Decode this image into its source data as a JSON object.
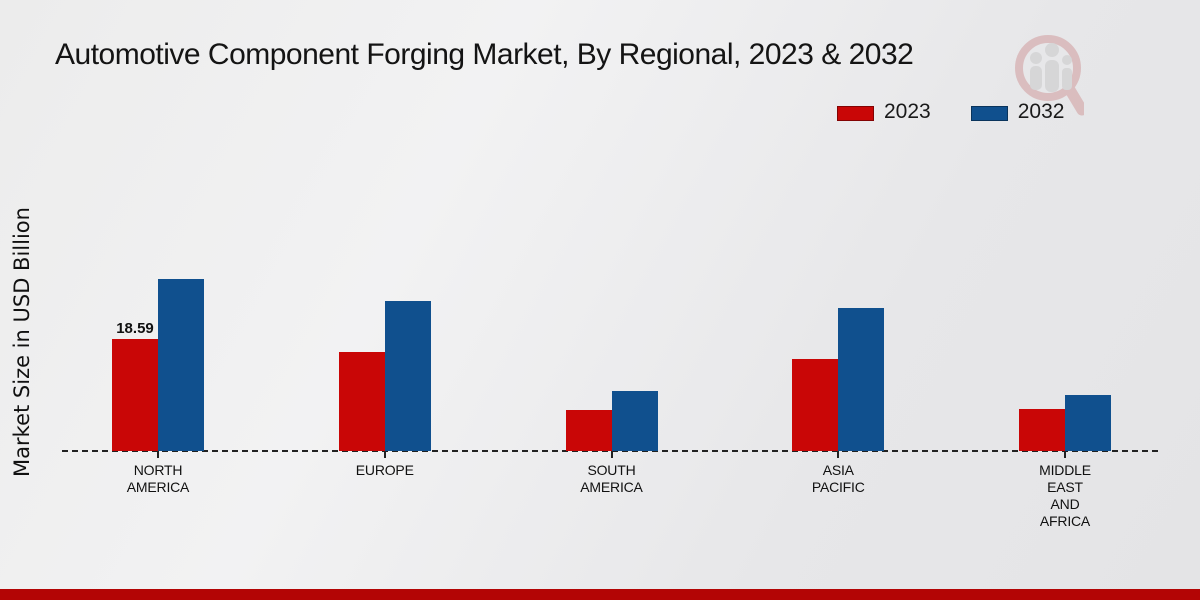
{
  "title": "Automotive Component Forging Market, By Regional, 2023 & 2032",
  "y_axis_label": "Market Size in USD Billion",
  "legend": {
    "items": [
      {
        "label": "2023",
        "color": "#c90606"
      },
      {
        "label": "2032",
        "color": "#10508e"
      }
    ]
  },
  "colors": {
    "series_2023": "#c90606",
    "series_2032": "#10508e",
    "footer_band": "#b30505",
    "axis_line": "#222222"
  },
  "watermark": {
    "name": "market-research-magnifier-logo"
  },
  "chart_data": {
    "type": "bar",
    "categories": [
      "NORTH AMERICA",
      "EUROPE",
      "SOUTH AMERICA",
      "ASIA PACIFIC",
      "MIDDLE EAST AND AFRICA"
    ],
    "category_label_lines": [
      [
        "NORTH",
        "AMERICA"
      ],
      [
        "EUROPE"
      ],
      [
        "SOUTH",
        "AMERICA"
      ],
      [
        "ASIA",
        "PACIFIC"
      ],
      [
        "MIDDLE",
        "EAST",
        "AND",
        "AFRICA"
      ]
    ],
    "series": [
      {
        "name": "2023",
        "color": "#c90606",
        "values": [
          18.59,
          16.4,
          6.8,
          15.2,
          6.9
        ]
      },
      {
        "name": "2032",
        "color": "#10508e",
        "values": [
          28.6,
          24.9,
          9.9,
          23.7,
          9.3
        ]
      }
    ],
    "data_labels": [
      {
        "series": "2023",
        "category_index": 0,
        "text": "18.59"
      }
    ],
    "title": "Automotive Component Forging Market, By Regional, 2023 & 2032",
    "xlabel": "",
    "ylabel": "Market Size in USD Billion",
    "ylim": [
      0,
      30
    ],
    "grid": false,
    "legend_position": "top-right",
    "baseline": "dashed-zero-line"
  }
}
